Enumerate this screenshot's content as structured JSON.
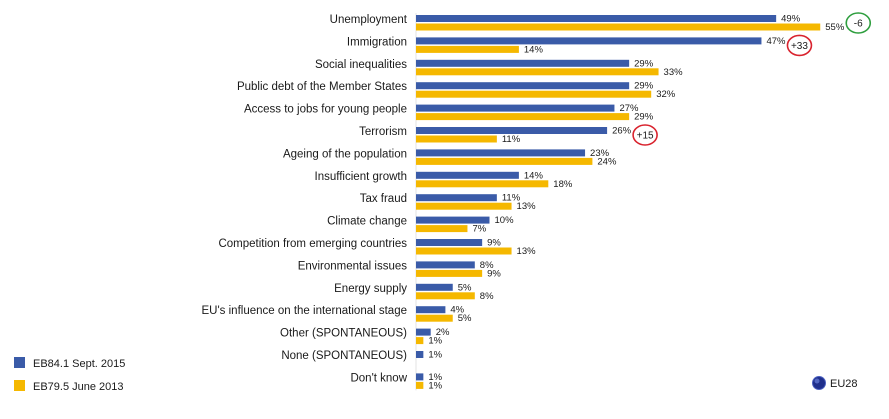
{
  "chart_data": {
    "type": "bar",
    "orientation": "horizontal",
    "categories": [
      "Unemployment",
      "Immigration",
      "Social inequalities",
      "Public debt of the Member States",
      "Access to jobs for young people",
      "Terrorism",
      "Ageing of the population",
      "Insufficient growth",
      "Tax fraud",
      "Climate change",
      "Competition from emerging countries",
      "Environmental issues",
      "Energy supply",
      "EU's influence on the international stage",
      "Other (SPONTANEOUS)",
      "None (SPONTANEOUS)",
      "Don't know"
    ],
    "series": [
      {
        "name": "EB84.1 Sept. 2015",
        "color": "#3a5ba8",
        "values": [
          49,
          47,
          29,
          29,
          27,
          26,
          23,
          14,
          11,
          10,
          9,
          8,
          5,
          4,
          2,
          1,
          1
        ],
        "labels": [
          "49%",
          "47%",
          "29%",
          "29%",
          "27%",
          "26%",
          "23%",
          "14%",
          "11%",
          "10%",
          "9%",
          "8%",
          "5%",
          "4%",
          "2%",
          "1%",
          "1%"
        ]
      },
      {
        "name": "EB79.5 June 2013",
        "color": "#f5b800",
        "values": [
          55,
          14,
          33,
          32,
          29,
          11,
          24,
          18,
          13,
          7,
          13,
          9,
          8,
          5,
          1,
          null,
          1
        ],
        "labels": [
          "55%",
          "14%",
          "33%",
          "32%",
          "29%",
          "11%",
          "24%",
          "18%",
          "13%",
          "7%",
          "13%",
          "9%",
          "8%",
          "5%",
          "1%",
          null,
          "1%"
        ]
      }
    ],
    "annotations": [
      {
        "category": "Unemployment",
        "text": "-6",
        "color": "#2e9e3e"
      },
      {
        "category": "Immigration",
        "text": "+33",
        "color": "#d9232e"
      },
      {
        "category": "Terrorism",
        "text": "+15",
        "color": "#d9232e"
      }
    ],
    "region_label": "EU28",
    "xlim": [
      0,
      60
    ],
    "grid": false,
    "legend_position": "bottom-left"
  }
}
